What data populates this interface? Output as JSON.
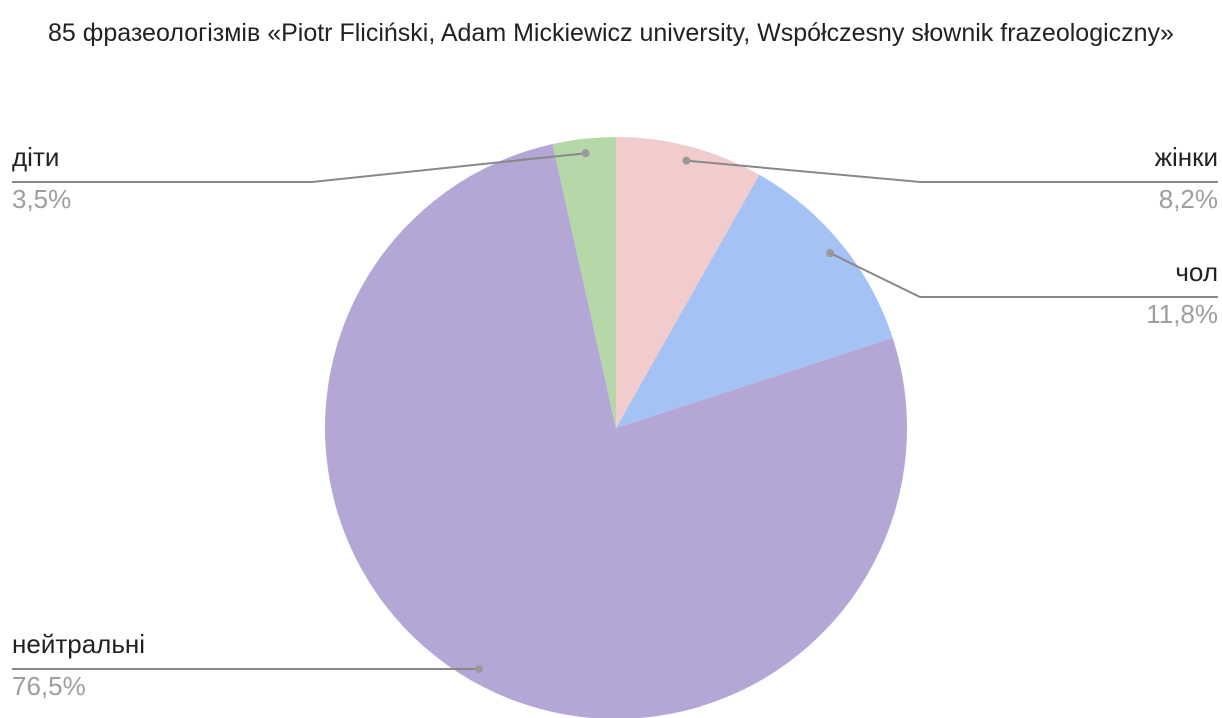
{
  "chart_data": {
    "type": "pie",
    "title": "85 фразеологізмів «Piotr Fliciński, Adam Mickiewicz university, Współczesny słownik frazeologiczny»",
    "slices": [
      {
        "label": "жінки",
        "value": 8.2,
        "value_label": "8,2%",
        "color": "#f2cccc",
        "side": "right"
      },
      {
        "label": "чол",
        "value": 11.8,
        "value_label": "11,8%",
        "color": "#a4c2f4",
        "side": "right"
      },
      {
        "label": "нейтральні",
        "value": 76.5,
        "value_label": "76,5%",
        "color": "#b4a7d6",
        "side": "left"
      },
      {
        "label": "діти",
        "value": 3.5,
        "value_label": "3,5%",
        "color": "#b6d7a8",
        "side": "left"
      }
    ],
    "start_angle_deg": 0,
    "direction": "clockwise",
    "label_placement": "outside with leader lines"
  }
}
